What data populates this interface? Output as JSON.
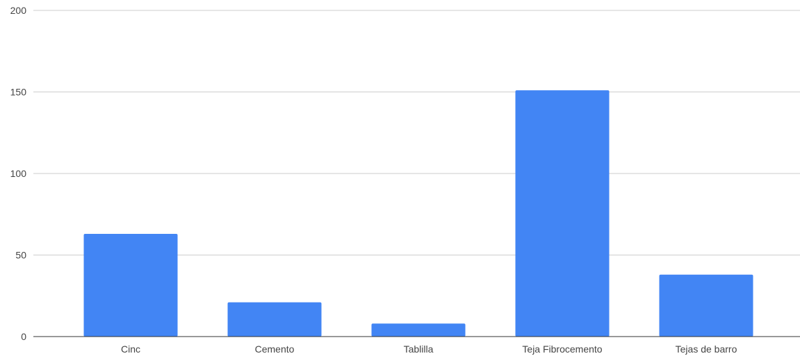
{
  "chart_data": {
    "type": "bar",
    "categories": [
      "Cinc",
      "Cemento",
      "Tablilla",
      "Teja Fibrocemento",
      "Tejas de barro"
    ],
    "values": [
      63,
      21,
      8,
      151,
      38
    ],
    "title": "",
    "xlabel": "",
    "ylabel": "",
    "ylim": [
      0,
      200
    ],
    "yticks": [
      0,
      50,
      100,
      150,
      200
    ],
    "grid": true,
    "legend": "none",
    "colors": {
      "bar": "#4285f4",
      "grid": "#cccccc",
      "axis": "#333333",
      "text": "#444444"
    }
  }
}
